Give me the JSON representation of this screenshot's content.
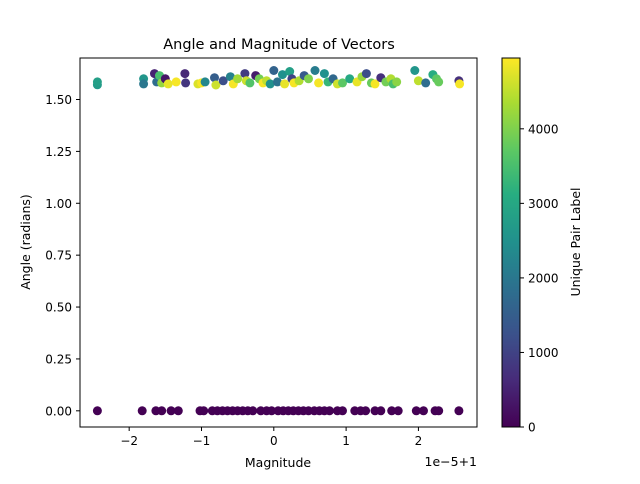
{
  "chart_data": {
    "type": "scatter",
    "title": "Angle and Magnitude of Vectors",
    "xlabel": "Magnitude",
    "ylabel": "Angle (radians)",
    "x_offset_label": "1e−5+1",
    "x_tick_labels": [
      "−2",
      "−1",
      "0",
      "1",
      "2"
    ],
    "x_ticks": [
      -2,
      -1,
      0,
      1,
      2
    ],
    "xlim": [
      -2.68,
      2.81
    ],
    "y_tick_labels": [
      "0.00",
      "0.25",
      "0.50",
      "0.75",
      "1.00",
      "1.25",
      "1.50"
    ],
    "y_ticks": [
      0,
      0.25,
      0.5,
      0.75,
      1.0,
      1.25,
      1.5
    ],
    "ylim": [
      -0.078,
      1.7
    ],
    "grid": false,
    "colorbar": {
      "label": "Unique Pair Label",
      "colormap": "viridis",
      "range": [
        0,
        4950
      ],
      "tick_labels": [
        "0",
        "1000",
        "2000",
        "3000",
        "4000"
      ],
      "ticks": [
        0,
        1000,
        2000,
        3000,
        4000
      ]
    },
    "series_bottom": {
      "y": 0,
      "label_value": 0,
      "x": [
        -2.44,
        -1.82,
        -1.63,
        -1.55,
        -1.42,
        -1.32,
        -1.02,
        -0.97,
        -0.85,
        -0.78,
        -0.71,
        -0.64,
        -0.57,
        -0.5,
        -0.43,
        -0.36,
        -0.29,
        -0.18,
        -0.1,
        -0.03,
        0.06,
        0.13,
        0.2,
        0.27,
        0.34,
        0.41,
        0.48,
        0.56,
        0.63,
        0.7,
        0.77,
        0.88,
        0.95,
        1.12,
        1.2,
        1.27,
        1.4,
        1.48,
        1.63,
        1.72,
        1.97,
        2.07,
        2.23,
        2.28,
        2.56
      ]
    },
    "series_top": {
      "points": [
        [
          -2.44,
          1.571,
          2700
        ],
        [
          -2.44,
          1.585,
          2800
        ],
        [
          -1.8,
          1.6,
          2600
        ],
        [
          -1.8,
          1.575,
          2000
        ],
        [
          -1.65,
          1.625,
          500
        ],
        [
          -1.62,
          1.585,
          1800
        ],
        [
          -1.58,
          1.615,
          3500
        ],
        [
          -1.55,
          1.58,
          4200
        ],
        [
          -1.5,
          1.6,
          300
        ],
        [
          -1.46,
          1.575,
          4800
        ],
        [
          -1.35,
          1.585,
          4900
        ],
        [
          -1.23,
          1.625,
          600
        ],
        [
          -1.22,
          1.58,
          800
        ],
        [
          -1.05,
          1.575,
          4700
        ],
        [
          -1.0,
          1.58,
          4900
        ],
        [
          -0.95,
          1.585,
          2300
        ],
        [
          -0.82,
          1.605,
          1500
        ],
        [
          -0.8,
          1.57,
          4600
        ],
        [
          -0.7,
          1.59,
          1200
        ],
        [
          -0.6,
          1.61,
          2200
        ],
        [
          -0.56,
          1.575,
          4900
        ],
        [
          -0.5,
          1.6,
          4300
        ],
        [
          -0.4,
          1.625,
          900
        ],
        [
          -0.38,
          1.59,
          4600
        ],
        [
          -0.33,
          1.58,
          3600
        ],
        [
          -0.25,
          1.615,
          400
        ],
        [
          -0.2,
          1.6,
          3900
        ],
        [
          -0.15,
          1.58,
          4900
        ],
        [
          -0.1,
          1.59,
          4500
        ],
        [
          -0.05,
          1.575,
          2500
        ],
        [
          0.0,
          1.64,
          1600
        ],
        [
          0.05,
          1.585,
          1900
        ],
        [
          0.12,
          1.62,
          2500
        ],
        [
          0.15,
          1.575,
          4800
        ],
        [
          0.22,
          1.635,
          2800
        ],
        [
          0.25,
          1.6,
          1000
        ],
        [
          0.28,
          1.58,
          4900
        ],
        [
          0.35,
          1.59,
          4400
        ],
        [
          0.42,
          1.615,
          1400
        ],
        [
          0.48,
          1.6,
          4000
        ],
        [
          0.57,
          1.64,
          2100
        ],
        [
          0.62,
          1.58,
          4900
        ],
        [
          0.7,
          1.625,
          2500
        ],
        [
          0.75,
          1.585,
          3300
        ],
        [
          0.82,
          1.6,
          1700
        ],
        [
          0.88,
          1.575,
          4600
        ],
        [
          0.95,
          1.58,
          3700
        ],
        [
          1.05,
          1.6,
          3000
        ],
        [
          1.15,
          1.585,
          4800
        ],
        [
          1.22,
          1.61,
          4200
        ],
        [
          1.28,
          1.625,
          1200
        ],
        [
          1.35,
          1.58,
          3800
        ],
        [
          1.4,
          1.575,
          4900
        ],
        [
          1.48,
          1.605,
          700
        ],
        [
          1.55,
          1.585,
          3900
        ],
        [
          1.62,
          1.6,
          4400
        ],
        [
          1.65,
          1.575,
          3500
        ],
        [
          1.7,
          1.585,
          4100
        ],
        [
          1.95,
          1.64,
          2600
        ],
        [
          2.0,
          1.59,
          4500
        ],
        [
          2.1,
          1.58,
          1800
        ],
        [
          2.2,
          1.62,
          3100
        ],
        [
          2.25,
          1.6,
          3700
        ],
        [
          2.28,
          1.585,
          3800
        ],
        [
          2.56,
          1.59,
          700
        ],
        [
          2.57,
          1.575,
          4900
        ]
      ]
    }
  }
}
